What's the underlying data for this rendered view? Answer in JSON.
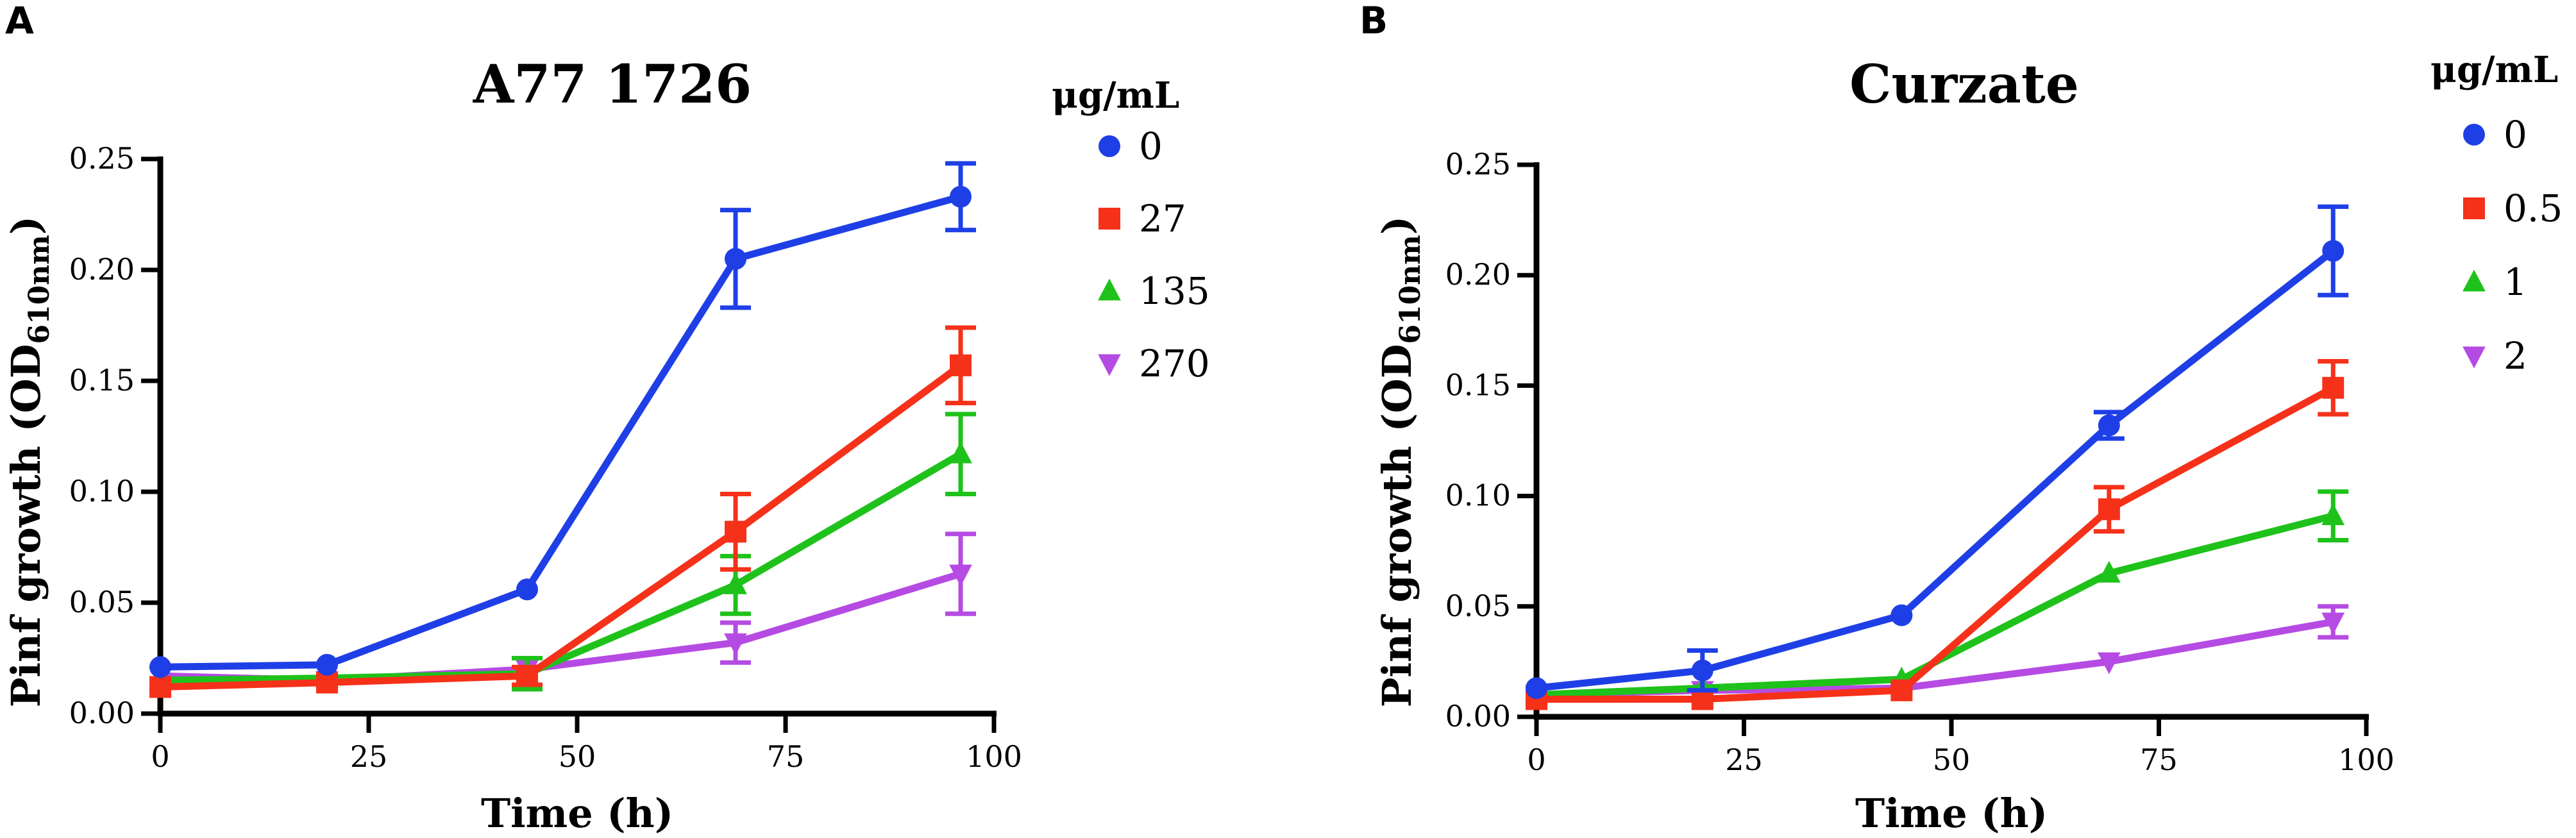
{
  "figure": {
    "panels": [
      {
        "letter": "A",
        "legend_title": "μg/mL",
        "y_axis_main": "Pinf growth (OD",
        "y_axis_sub": "610nm",
        "y_axis_end": ")"
      },
      {
        "letter": "B",
        "legend_title": "μg/mL",
        "y_axis_main": "Pinf growth (OD",
        "y_axis_sub": "610nm",
        "y_axis_end": ")"
      }
    ]
  },
  "chart_data": [
    {
      "type": "line",
      "title": "A77 1726",
      "xlabel": "Time (h)",
      "ylabel": "Pinf growth (OD610nm)",
      "xlim": [
        0,
        100
      ],
      "ylim": [
        0,
        0.25
      ],
      "xticks": [
        0,
        25,
        50,
        75,
        100
      ],
      "xtick_labels": [
        "0",
        "25",
        "50",
        "75",
        "100"
      ],
      "yticks": [
        0,
        0.05,
        0.1,
        0.15,
        0.2,
        0.25
      ],
      "ytick_labels": [
        "0.00",
        "0.05",
        "0.10",
        "0.15",
        "0.20",
        "0.25"
      ],
      "legend_title": "μg/mL",
      "legend_position": "right",
      "x": [
        0,
        20,
        44,
        69,
        96
      ],
      "series": [
        {
          "name": "0",
          "color": "#1f3fe6",
          "marker": "circle",
          "values": [
            0.021,
            0.022,
            0.056,
            0.205,
            0.233
          ],
          "errors": [
            0.0,
            0.0,
            0.0,
            0.022,
            0.015
          ]
        },
        {
          "name": "27",
          "color": "#f5311a",
          "marker": "square",
          "values": [
            0.012,
            0.014,
            0.017,
            0.082,
            0.157
          ],
          "errors": [
            0.0,
            0.0,
            0.004,
            0.017,
            0.017
          ]
        },
        {
          "name": "135",
          "color": "#1fc21a",
          "marker": "triangle-up",
          "values": [
            0.015,
            0.016,
            0.018,
            0.058,
            0.117
          ],
          "errors": [
            0.0,
            0.0,
            0.007,
            0.013,
            0.018
          ]
        },
        {
          "name": "270",
          "color": "#b54be3",
          "marker": "triangle-down",
          "values": [
            0.017,
            0.015,
            0.02,
            0.032,
            0.063
          ],
          "errors": [
            0.0,
            0.0,
            0.0,
            0.009,
            0.018
          ]
        }
      ]
    },
    {
      "type": "line",
      "title": "Curzate",
      "xlabel": "Time (h)",
      "ylabel": "Pinf growth (OD610nm)",
      "xlim": [
        0,
        100
      ],
      "ylim": [
        0,
        0.25
      ],
      "xticks": [
        0,
        25,
        50,
        75,
        100
      ],
      "xtick_labels": [
        "0",
        "25",
        "50",
        "75",
        "100"
      ],
      "yticks": [
        0,
        0.05,
        0.1,
        0.15,
        0.2,
        0.25
      ],
      "ytick_labels": [
        "0.00",
        "0.05",
        "0.10",
        "0.15",
        "0.20",
        "0.25"
      ],
      "legend_title": "μg/mL",
      "legend_position": "right",
      "x": [
        0,
        20,
        44,
        69,
        96
      ],
      "series": [
        {
          "name": "0",
          "color": "#1f3fe6",
          "marker": "circle",
          "values": [
            0.013,
            0.021,
            0.046,
            0.132,
            0.211
          ],
          "errors": [
            0.0,
            0.009,
            0.0,
            0.006,
            0.02
          ]
        },
        {
          "name": "0.5",
          "color": "#f5311a",
          "marker": "square",
          "values": [
            0.008,
            0.008,
            0.012,
            0.094,
            0.149
          ],
          "errors": [
            0.0,
            0.0,
            0.0,
            0.01,
            0.012
          ]
        },
        {
          "name": "1",
          "color": "#1fc21a",
          "marker": "triangle-up",
          "values": [
            0.01,
            0.013,
            0.017,
            0.065,
            0.091
          ],
          "errors": [
            0.0,
            0.0,
            0.0,
            0.0,
            0.011
          ]
        },
        {
          "name": "2",
          "color": "#b54be3",
          "marker": "triangle-down",
          "values": [
            0.01,
            0.012,
            0.013,
            0.025,
            0.043
          ],
          "errors": [
            0.0,
            0.0,
            0.0,
            0.0,
            0.007
          ]
        }
      ]
    }
  ]
}
